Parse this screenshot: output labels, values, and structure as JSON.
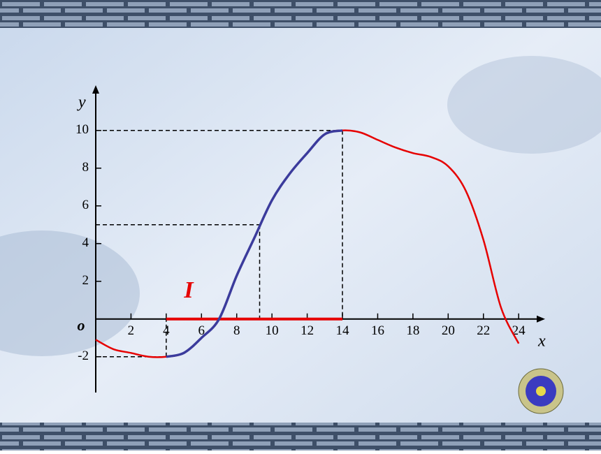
{
  "chart_data": {
    "type": "line",
    "x": [
      0,
      1,
      2,
      3,
      4,
      5,
      6,
      7,
      8,
      9,
      10,
      11,
      12,
      13,
      14,
      15,
      16,
      17,
      18,
      19,
      20,
      21,
      22,
      23,
      24
    ],
    "values": [
      -1.1,
      -1.6,
      -1.8,
      -2.0,
      -2.0,
      -1.8,
      -1.0,
      0,
      2.3,
      4.3,
      6.3,
      7.7,
      8.8,
      9.8,
      10,
      9.9,
      9.5,
      9.1,
      8.8,
      8.6,
      8.1,
      6.8,
      4.2,
      0.6,
      -1.3
    ],
    "color": "#e60000",
    "highlight": {
      "from": 4,
      "to": 14,
      "color": "#3b3b9c"
    },
    "xlim": [
      0,
      25.5
    ],
    "ylim": [
      -3.9,
      12.4
    ],
    "xticks": [
      2,
      4,
      6,
      8,
      10,
      12,
      14,
      16,
      18,
      20,
      22,
      24
    ],
    "yticks": [
      -2,
      2,
      4,
      6,
      8,
      10
    ],
    "xlabel": "x",
    "ylabel": "y",
    "origin_label": "o",
    "guides": [
      {
        "x": 14,
        "y": 10
      },
      {
        "x": 9.3,
        "y": 5
      },
      {
        "x": 4,
        "y": -2
      }
    ],
    "interval": {
      "label": "I",
      "from": 4,
      "to": 14,
      "color": "#e60000"
    }
  }
}
